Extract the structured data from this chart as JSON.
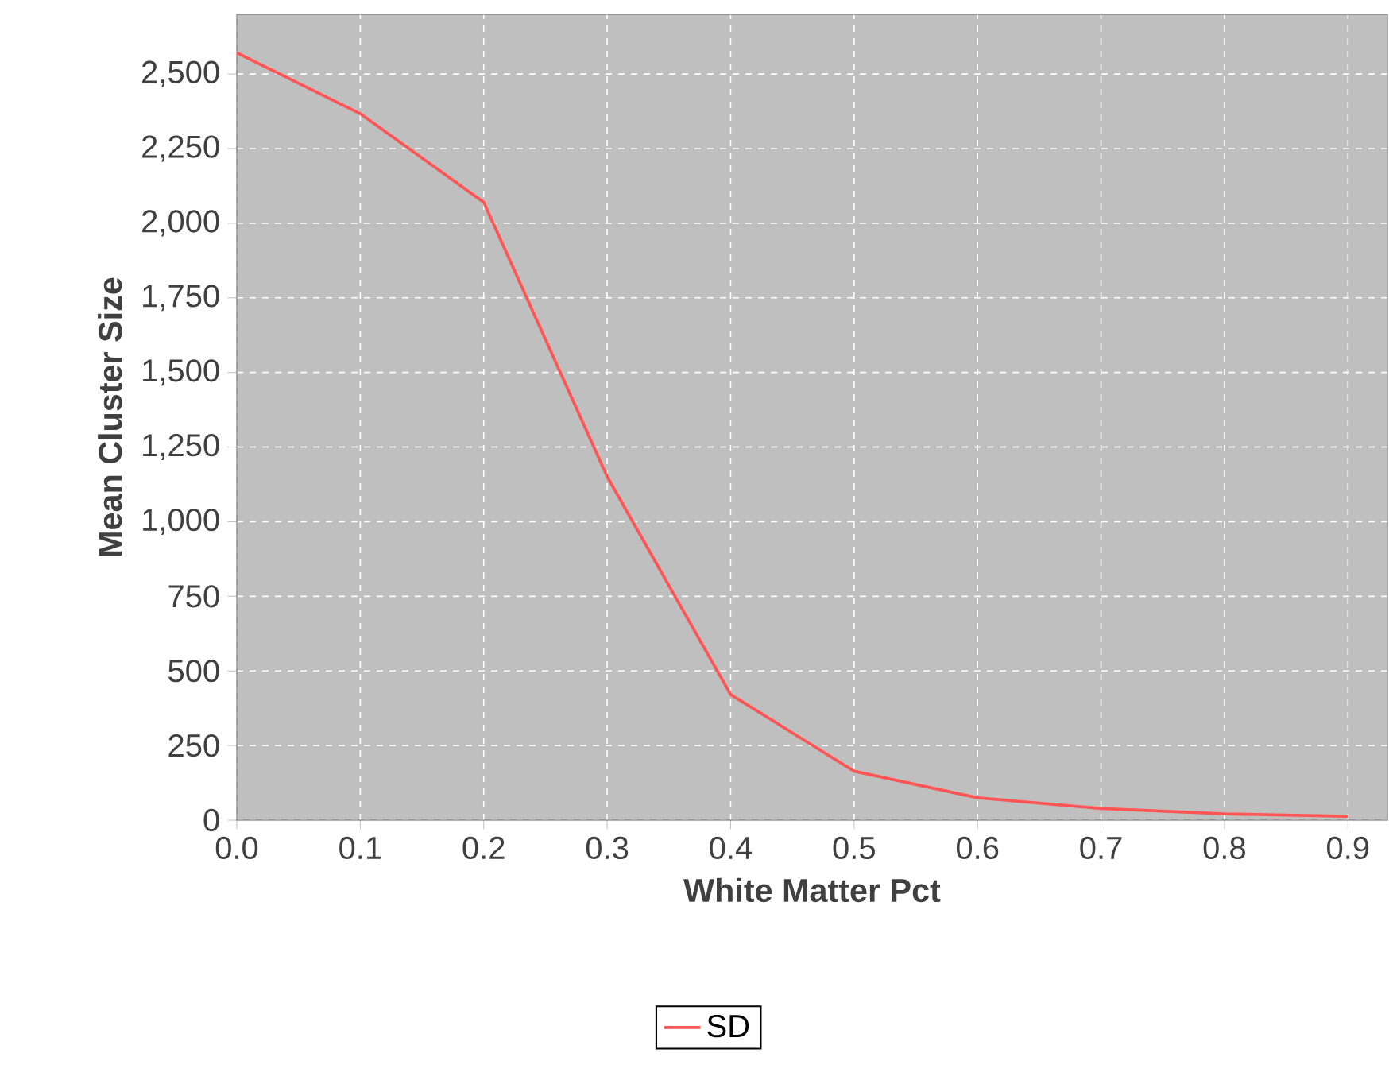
{
  "chart_data": {
    "type": "line",
    "xlabel": "White Matter Pct",
    "ylabel": "Mean Cluster Size",
    "x": [
      0.0,
      0.1,
      0.2,
      0.3,
      0.4,
      0.5,
      0.6,
      0.7,
      0.8,
      0.9
    ],
    "series": [
      {
        "name": "SD",
        "color": "#ff5555",
        "values": [
          2571,
          2367,
          2070,
          1151,
          421,
          164,
          75,
          39,
          21,
          13
        ]
      }
    ],
    "xlim": [
      0.0,
      0.932
    ],
    "ylim": [
      0,
      2700
    ],
    "xticks": [
      {
        "value": 0.0,
        "label": "0.0"
      },
      0.1,
      0.2,
      0.3,
      0.4,
      0.5,
      0.6,
      0.7,
      0.8,
      0.9
    ],
    "yticks": [
      0,
      250,
      500,
      750,
      {
        "value": 1000,
        "label": "1,000"
      },
      {
        "value": 1250,
        "label": "1,250"
      },
      {
        "value": 1500,
        "label": "1,500"
      },
      {
        "value": 1750,
        "label": "1,750"
      },
      {
        "value": 2000,
        "label": "2,000"
      },
      {
        "value": 2250,
        "label": "2,250"
      },
      {
        "value": 2500,
        "label": "2,500"
      }
    ],
    "grid": true,
    "legend": "bottom",
    "marker": "none",
    "line_style": "solid"
  }
}
